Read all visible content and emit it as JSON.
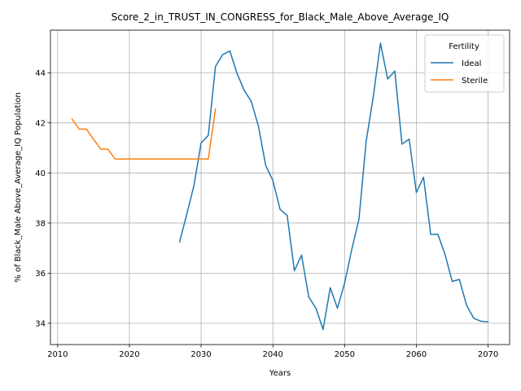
{
  "chart_data": {
    "type": "line",
    "title": "Score_2_in_TRUST_IN_CONGRESS_for_Black_Male_Above_Average_IQ",
    "xlabel": "Years",
    "ylabel": "% of Black_Male Above_Average_IQ Population",
    "xlim": [
      2009,
      2073
    ],
    "ylim": [
      33.15,
      45.7
    ],
    "xticks": [
      2010,
      2020,
      2030,
      2040,
      2050,
      2060,
      2070
    ],
    "yticks": [
      34,
      36,
      38,
      40,
      42,
      44
    ],
    "grid": true,
    "legend": {
      "title": "Fertility",
      "placement": "top-right"
    },
    "series": [
      {
        "name": "Ideal",
        "color": "#1f77b4",
        "x": [
          2027,
          2028,
          2029,
          2030,
          2031,
          2032,
          2033,
          2034,
          2035,
          2036,
          2037,
          2038,
          2039,
          2040,
          2041,
          2042,
          2043,
          2044,
          2045,
          2046,
          2047,
          2048,
          2049,
          2050,
          2051,
          2052,
          2053,
          2054,
          2055,
          2056,
          2057,
          2058,
          2059,
          2060,
          2061,
          2062,
          2063,
          2064,
          2065,
          2066,
          2067,
          2068,
          2069,
          2070
        ],
        "y": [
          37.25,
          38.35,
          39.5,
          41.2,
          41.5,
          44.25,
          44.72,
          44.87,
          43.98,
          43.3,
          42.85,
          41.85,
          40.3,
          39.7,
          38.55,
          38.3,
          36.1,
          36.72,
          35.05,
          34.6,
          33.75,
          35.42,
          34.6,
          35.6,
          36.95,
          38.15,
          41.25,
          43.05,
          45.18,
          43.75,
          44.07,
          41.15,
          41.35,
          39.22,
          39.83,
          37.55,
          37.55,
          36.75,
          35.67,
          35.75,
          34.72,
          34.2,
          34.08,
          34.06
        ]
      },
      {
        "name": "Sterile",
        "color": "#ff7f0e",
        "x": [
          2012,
          2013,
          2014,
          2015,
          2016,
          2017,
          2018,
          2019,
          2020,
          2021,
          2022,
          2023,
          2024,
          2025,
          2026,
          2027,
          2028,
          2029,
          2030,
          2031,
          2032
        ],
        "y": [
          42.15,
          41.75,
          41.75,
          41.35,
          40.95,
          40.95,
          40.56,
          40.56,
          40.56,
          40.56,
          40.56,
          40.56,
          40.56,
          40.56,
          40.56,
          40.56,
          40.56,
          40.56,
          40.56,
          40.56,
          42.55
        ]
      }
    ]
  }
}
